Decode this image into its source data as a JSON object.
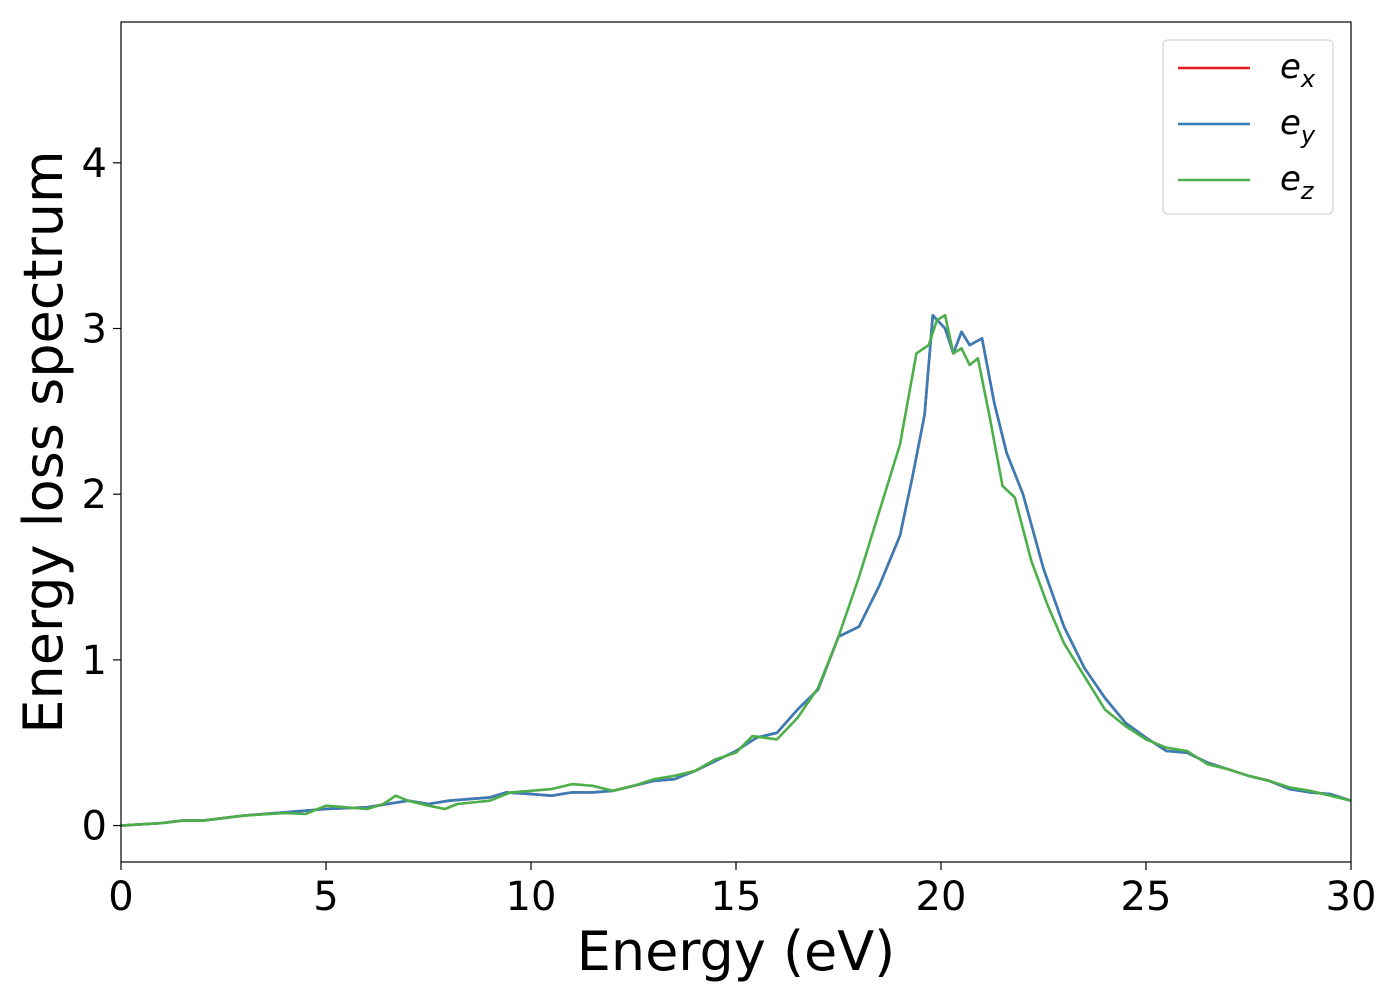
{
  "chart_data": {
    "type": "line",
    "title": "",
    "xlabel": "Energy (eV)",
    "ylabel": "Energy loss spectrum",
    "xlim": [
      0,
      30
    ],
    "ylim": [
      -0.22,
      4.85
    ],
    "xticks": [
      0,
      5,
      10,
      15,
      20,
      25,
      30
    ],
    "yticks": [
      0,
      1,
      2,
      3,
      4
    ],
    "grid": false,
    "legend_position": "top-right",
    "series": [
      {
        "name": "e_x",
        "legend_base": "e",
        "legend_sub": "x",
        "color": "#e41a1c",
        "x": [
          0,
          1,
          1.5,
          2,
          3,
          4,
          5,
          6,
          7,
          7.5,
          8,
          9,
          9.4,
          10,
          10.5,
          11,
          11.5,
          12,
          12.5,
          13,
          13.5,
          14,
          14.5,
          15,
          15.5,
          16,
          16.5,
          17,
          17.5,
          18,
          18.5,
          19,
          19.3,
          19.6,
          19.8,
          20.1,
          20.3,
          20.5,
          20.7,
          21,
          21.3,
          21.6,
          22,
          22.5,
          23,
          23.5,
          24,
          24.5,
          25,
          25.5,
          26,
          26.5,
          27,
          27.5,
          28,
          28.5,
          29,
          29.5,
          30
        ],
        "values": [
          0,
          0.015,
          0.03,
          0.03,
          0.06,
          0.08,
          0.1,
          0.11,
          0.15,
          0.13,
          0.15,
          0.17,
          0.2,
          0.19,
          0.18,
          0.2,
          0.2,
          0.21,
          0.24,
          0.27,
          0.28,
          0.33,
          0.39,
          0.45,
          0.53,
          0.56,
          0.7,
          0.82,
          1.14,
          1.2,
          1.45,
          1.75,
          2.1,
          2.48,
          3.08,
          3.0,
          2.85,
          2.98,
          2.9,
          2.94,
          2.55,
          2.25,
          2.0,
          1.55,
          1.2,
          0.95,
          0.77,
          0.62,
          0.53,
          0.45,
          0.44,
          0.38,
          0.34,
          0.3,
          0.27,
          0.22,
          0.2,
          0.19,
          0.15
        ]
      },
      {
        "name": "e_y",
        "legend_base": "e",
        "legend_sub": "y",
        "color": "#377eb8",
        "x": [
          0,
          1,
          1.5,
          2,
          3,
          4,
          5,
          6,
          7,
          7.5,
          8,
          9,
          9.4,
          10,
          10.5,
          11,
          11.5,
          12,
          12.5,
          13,
          13.5,
          14,
          14.5,
          15,
          15.5,
          16,
          16.5,
          17,
          17.5,
          18,
          18.5,
          19,
          19.3,
          19.6,
          19.8,
          20.1,
          20.3,
          20.5,
          20.7,
          21,
          21.3,
          21.6,
          22,
          22.5,
          23,
          23.5,
          24,
          24.5,
          25,
          25.5,
          26,
          26.5,
          27,
          27.5,
          28,
          28.5,
          29,
          29.5,
          30
        ],
        "values": [
          0,
          0.015,
          0.03,
          0.03,
          0.06,
          0.08,
          0.1,
          0.11,
          0.15,
          0.13,
          0.15,
          0.17,
          0.2,
          0.19,
          0.18,
          0.2,
          0.2,
          0.21,
          0.24,
          0.27,
          0.28,
          0.33,
          0.39,
          0.45,
          0.53,
          0.56,
          0.7,
          0.82,
          1.14,
          1.2,
          1.45,
          1.75,
          2.1,
          2.48,
          3.08,
          3.0,
          2.85,
          2.98,
          2.9,
          2.94,
          2.55,
          2.25,
          2.0,
          1.55,
          1.2,
          0.95,
          0.77,
          0.62,
          0.53,
          0.45,
          0.44,
          0.38,
          0.34,
          0.3,
          0.27,
          0.22,
          0.2,
          0.19,
          0.15
        ]
      },
      {
        "name": "e_z",
        "legend_base": "e",
        "legend_sub": "z",
        "color": "#4daf4a",
        "x": [
          0,
          1,
          1.5,
          2,
          3,
          4,
          4.5,
          5,
          5.5,
          6,
          6.4,
          6.7,
          7,
          7.5,
          7.9,
          8.2,
          9,
          9.5,
          10,
          10.5,
          11,
          11.5,
          12,
          12.5,
          13,
          13.5,
          14,
          14.5,
          15,
          15.4,
          15.7,
          16,
          16.5,
          17,
          17.5,
          18,
          18.5,
          19,
          19.4,
          19.7,
          19.9,
          20.1,
          20.3,
          20.5,
          20.7,
          20.9,
          21.2,
          21.5,
          21.8,
          22.2,
          22.6,
          23,
          23.5,
          24,
          24.5,
          25,
          25.5,
          26,
          26.5,
          27,
          27.5,
          28,
          28.5,
          29,
          29.5,
          30
        ],
        "values": [
          0,
          0.015,
          0.03,
          0.03,
          0.06,
          0.075,
          0.07,
          0.12,
          0.11,
          0.1,
          0.13,
          0.18,
          0.15,
          0.12,
          0.1,
          0.13,
          0.15,
          0.2,
          0.21,
          0.22,
          0.25,
          0.24,
          0.21,
          0.24,
          0.28,
          0.3,
          0.33,
          0.4,
          0.44,
          0.54,
          0.53,
          0.52,
          0.65,
          0.83,
          1.14,
          1.5,
          1.9,
          2.3,
          2.85,
          2.9,
          3.05,
          3.08,
          2.85,
          2.88,
          2.78,
          2.82,
          2.45,
          2.05,
          1.98,
          1.6,
          1.33,
          1.1,
          0.9,
          0.7,
          0.6,
          0.52,
          0.47,
          0.45,
          0.37,
          0.34,
          0.3,
          0.27,
          0.23,
          0.21,
          0.18,
          0.15
        ]
      }
    ]
  }
}
